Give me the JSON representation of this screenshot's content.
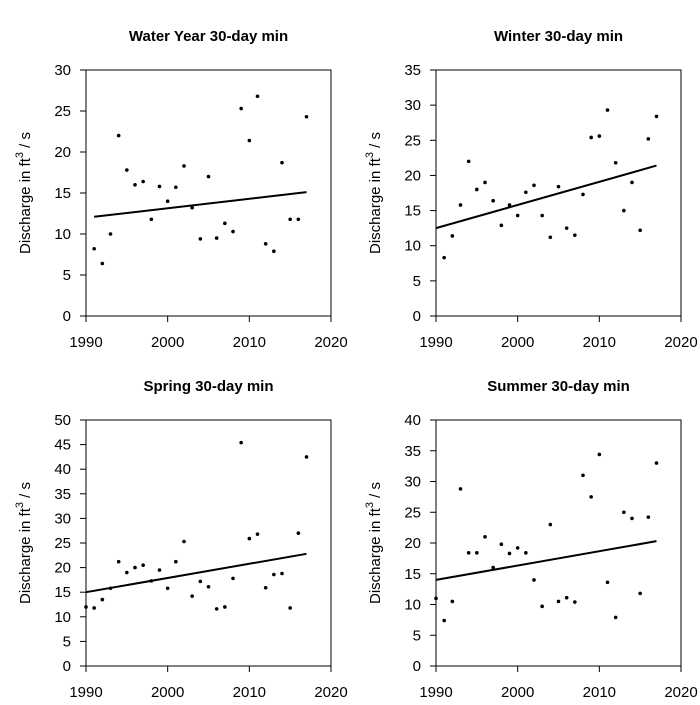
{
  "chart_data": [
    {
      "type": "scatter",
      "title": "Water Year 30-day min",
      "xlabel": "",
      "ylabel": "Discharge in ft3 / s",
      "xlim": [
        1990,
        2020
      ],
      "ylim": [
        0,
        30
      ],
      "xticks": [
        "1990",
        "2000",
        "2010",
        "2020"
      ],
      "yticks": [
        "0",
        "5",
        "10",
        "15",
        "20",
        "25",
        "30"
      ],
      "grid": false,
      "points": [
        {
          "x": 1991,
          "y": 8.2
        },
        {
          "x": 1992,
          "y": 6.4
        },
        {
          "x": 1993,
          "y": 10.0
        },
        {
          "x": 1994,
          "y": 22.0
        },
        {
          "x": 1995,
          "y": 17.8
        },
        {
          "x": 1996,
          "y": 16.0
        },
        {
          "x": 1997,
          "y": 16.4
        },
        {
          "x": 1998,
          "y": 11.8
        },
        {
          "x": 1999,
          "y": 15.8
        },
        {
          "x": 2000,
          "y": 14.0
        },
        {
          "x": 2001,
          "y": 15.7
        },
        {
          "x": 2002,
          "y": 18.3
        },
        {
          "x": 2003,
          "y": 13.2
        },
        {
          "x": 2004,
          "y": 9.4
        },
        {
          "x": 2005,
          "y": 17.0
        },
        {
          "x": 2006,
          "y": 9.5
        },
        {
          "x": 2007,
          "y": 11.3
        },
        {
          "x": 2008,
          "y": 10.3
        },
        {
          "x": 2009,
          "y": 25.3
        },
        {
          "x": 2010,
          "y": 21.4
        },
        {
          "x": 2011,
          "y": 26.8
        },
        {
          "x": 2012,
          "y": 8.8
        },
        {
          "x": 2013,
          "y": 7.9
        },
        {
          "x": 2014,
          "y": 18.7
        },
        {
          "x": 2015,
          "y": 11.8
        },
        {
          "x": 2016,
          "y": 11.8
        },
        {
          "x": 2017,
          "y": 24.3
        }
      ],
      "trend": {
        "x": [
          1991,
          2017
        ],
        "y": [
          12.1,
          15.1
        ]
      }
    },
    {
      "type": "scatter",
      "title": "Winter 30-day min",
      "xlabel": "",
      "ylabel": "Discharge in ft3 / s",
      "xlim": [
        1990,
        2020
      ],
      "ylim": [
        0,
        35
      ],
      "xticks": [
        "1990",
        "2000",
        "2010",
        "2020"
      ],
      "yticks": [
        "0",
        "5",
        "10",
        "15",
        "20",
        "25",
        "30",
        "35"
      ],
      "grid": false,
      "points": [
        {
          "x": 1991,
          "y": 8.3
        },
        {
          "x": 1992,
          "y": 11.4
        },
        {
          "x": 1993,
          "y": 15.8
        },
        {
          "x": 1994,
          "y": 22.0
        },
        {
          "x": 1995,
          "y": 18.0
        },
        {
          "x": 1996,
          "y": 19.0
        },
        {
          "x": 1997,
          "y": 16.4
        },
        {
          "x": 1998,
          "y": 12.9
        },
        {
          "x": 1999,
          "y": 15.8
        },
        {
          "x": 2000,
          "y": 14.3
        },
        {
          "x": 2001,
          "y": 17.6
        },
        {
          "x": 2002,
          "y": 18.6
        },
        {
          "x": 2003,
          "y": 14.3
        },
        {
          "x": 2004,
          "y": 11.2
        },
        {
          "x": 2005,
          "y": 18.4
        },
        {
          "x": 2006,
          "y": 12.5
        },
        {
          "x": 2007,
          "y": 11.5
        },
        {
          "x": 2008,
          "y": 17.3
        },
        {
          "x": 2009,
          "y": 25.4
        },
        {
          "x": 2010,
          "y": 25.6
        },
        {
          "x": 2011,
          "y": 29.3
        },
        {
          "x": 2012,
          "y": 21.8
        },
        {
          "x": 2013,
          "y": 15.0
        },
        {
          "x": 2014,
          "y": 19.0
        },
        {
          "x": 2015,
          "y": 12.2
        },
        {
          "x": 2016,
          "y": 25.2
        },
        {
          "x": 2017,
          "y": 28.4
        }
      ],
      "trend": {
        "x": [
          1990,
          2017
        ],
        "y": [
          12.5,
          21.4
        ]
      }
    },
    {
      "type": "scatter",
      "title": "Spring 30-day min",
      "xlabel": "",
      "ylabel": "Discharge in ft3 / s",
      "xlim": [
        1990,
        2020
      ],
      "ylim": [
        0,
        50
      ],
      "xticks": [
        "1990",
        "2000",
        "2010",
        "2020"
      ],
      "yticks": [
        "0",
        "5",
        "10",
        "15",
        "20",
        "25",
        "30",
        "35",
        "40",
        "45",
        "50"
      ],
      "grid": false,
      "points": [
        {
          "x": 1990,
          "y": 12.0
        },
        {
          "x": 1991,
          "y": 11.8
        },
        {
          "x": 1992,
          "y": 13.5
        },
        {
          "x": 1993,
          "y": 15.8
        },
        {
          "x": 1994,
          "y": 21.2
        },
        {
          "x": 1995,
          "y": 19.0
        },
        {
          "x": 1996,
          "y": 20.0
        },
        {
          "x": 1997,
          "y": 20.5
        },
        {
          "x": 1998,
          "y": 17.3
        },
        {
          "x": 1999,
          "y": 19.5
        },
        {
          "x": 2000,
          "y": 15.8
        },
        {
          "x": 2001,
          "y": 21.2
        },
        {
          "x": 2002,
          "y": 25.3
        },
        {
          "x": 2003,
          "y": 14.2
        },
        {
          "x": 2004,
          "y": 17.2
        },
        {
          "x": 2005,
          "y": 16.1
        },
        {
          "x": 2006,
          "y": 11.6
        },
        {
          "x": 2007,
          "y": 12.0
        },
        {
          "x": 2008,
          "y": 17.8
        },
        {
          "x": 2009,
          "y": 45.4
        },
        {
          "x": 2010,
          "y": 25.9
        },
        {
          "x": 2011,
          "y": 26.8
        },
        {
          "x": 2012,
          "y": 15.9
        },
        {
          "x": 2013,
          "y": 18.6
        },
        {
          "x": 2014,
          "y": 18.8
        },
        {
          "x": 2015,
          "y": 11.8
        },
        {
          "x": 2016,
          "y": 27.0
        },
        {
          "x": 2017,
          "y": 42.5
        }
      ],
      "trend": {
        "x": [
          1990,
          2017
        ],
        "y": [
          15.0,
          22.8
        ]
      }
    },
    {
      "type": "scatter",
      "title": "Summer 30-day min",
      "xlabel": "",
      "ylabel": "Discharge in ft3 / s",
      "xlim": [
        1990,
        2020
      ],
      "ylim": [
        0,
        40
      ],
      "xticks": [
        "1990",
        "2000",
        "2010",
        "2020"
      ],
      "yticks": [
        "0",
        "5",
        "10",
        "15",
        "20",
        "25",
        "30",
        "35",
        "40"
      ],
      "grid": false,
      "points": [
        {
          "x": 1990,
          "y": 11.0
        },
        {
          "x": 1991,
          "y": 7.4
        },
        {
          "x": 1992,
          "y": 10.5
        },
        {
          "x": 1993,
          "y": 28.8
        },
        {
          "x": 1994,
          "y": 18.4
        },
        {
          "x": 1995,
          "y": 18.4
        },
        {
          "x": 1996,
          "y": 21.0
        },
        {
          "x": 1997,
          "y": 16.0
        },
        {
          "x": 1998,
          "y": 19.8
        },
        {
          "x": 1999,
          "y": 18.3
        },
        {
          "x": 2000,
          "y": 19.2
        },
        {
          "x": 2001,
          "y": 18.4
        },
        {
          "x": 2002,
          "y": 14.0
        },
        {
          "x": 2003,
          "y": 9.7
        },
        {
          "x": 2004,
          "y": 23.0
        },
        {
          "x": 2005,
          "y": 10.5
        },
        {
          "x": 2006,
          "y": 11.1
        },
        {
          "x": 2007,
          "y": 10.4
        },
        {
          "x": 2008,
          "y": 31.0
        },
        {
          "x": 2009,
          "y": 27.5
        },
        {
          "x": 2010,
          "y": 34.4
        },
        {
          "x": 2011,
          "y": 13.6
        },
        {
          "x": 2012,
          "y": 7.9
        },
        {
          "x": 2013,
          "y": 25.0
        },
        {
          "x": 2014,
          "y": 24.0
        },
        {
          "x": 2015,
          "y": 11.8
        },
        {
          "x": 2016,
          "y": 24.2
        },
        {
          "x": 2017,
          "y": 33.0
        }
      ],
      "trend": {
        "x": [
          1990,
          2017
        ],
        "y": [
          14.0,
          20.3
        ]
      }
    }
  ]
}
